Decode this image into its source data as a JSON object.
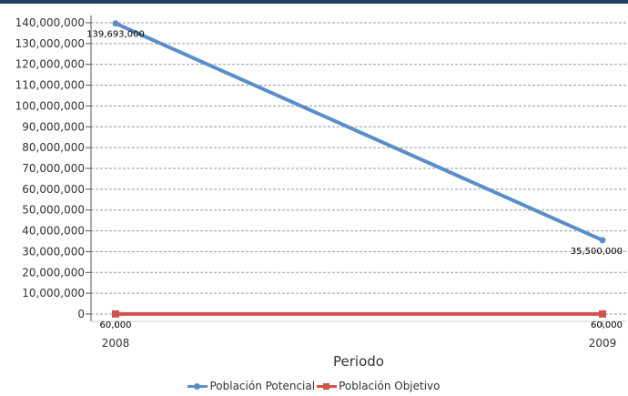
{
  "colors": {
    "header_bar": "#1f3d66",
    "grid": "#9a9a9a",
    "axis": "#555555"
  },
  "chart_data": {
    "type": "line",
    "title": "",
    "xlabel": "Periodo",
    "ylabel": "",
    "x": [
      "2008",
      "2009"
    ],
    "ylim": [
      0,
      140000000
    ],
    "yticks": [
      0,
      10000000,
      20000000,
      30000000,
      40000000,
      50000000,
      60000000,
      70000000,
      80000000,
      90000000,
      100000000,
      110000000,
      120000000,
      130000000,
      140000000
    ],
    "ytick_labels": [
      "0",
      "10,000,000",
      "20,000,000",
      "30,000,000",
      "40,000,000",
      "50,000,000",
      "60,000,000",
      "70,000,000",
      "80,000,000",
      "90,000,000",
      "100,000,000",
      "110,000,000",
      "120,000,000",
      "130,000,000",
      "140,000,000"
    ],
    "grid": "horizontal dashed",
    "legend_position": "bottom-center",
    "series": [
      {
        "name": "Población Potencial",
        "values": [
          139693000,
          35500000
        ],
        "labels": [
          "139,693,000",
          "35,500,000"
        ],
        "color": "#5b8ec9",
        "marker": "circle"
      },
      {
        "name": "Población Objetivo",
        "values": [
          60000,
          60000
        ],
        "labels": [
          "60,000",
          "60,000"
        ],
        "color": "#d2514b",
        "marker": "square"
      }
    ]
  }
}
